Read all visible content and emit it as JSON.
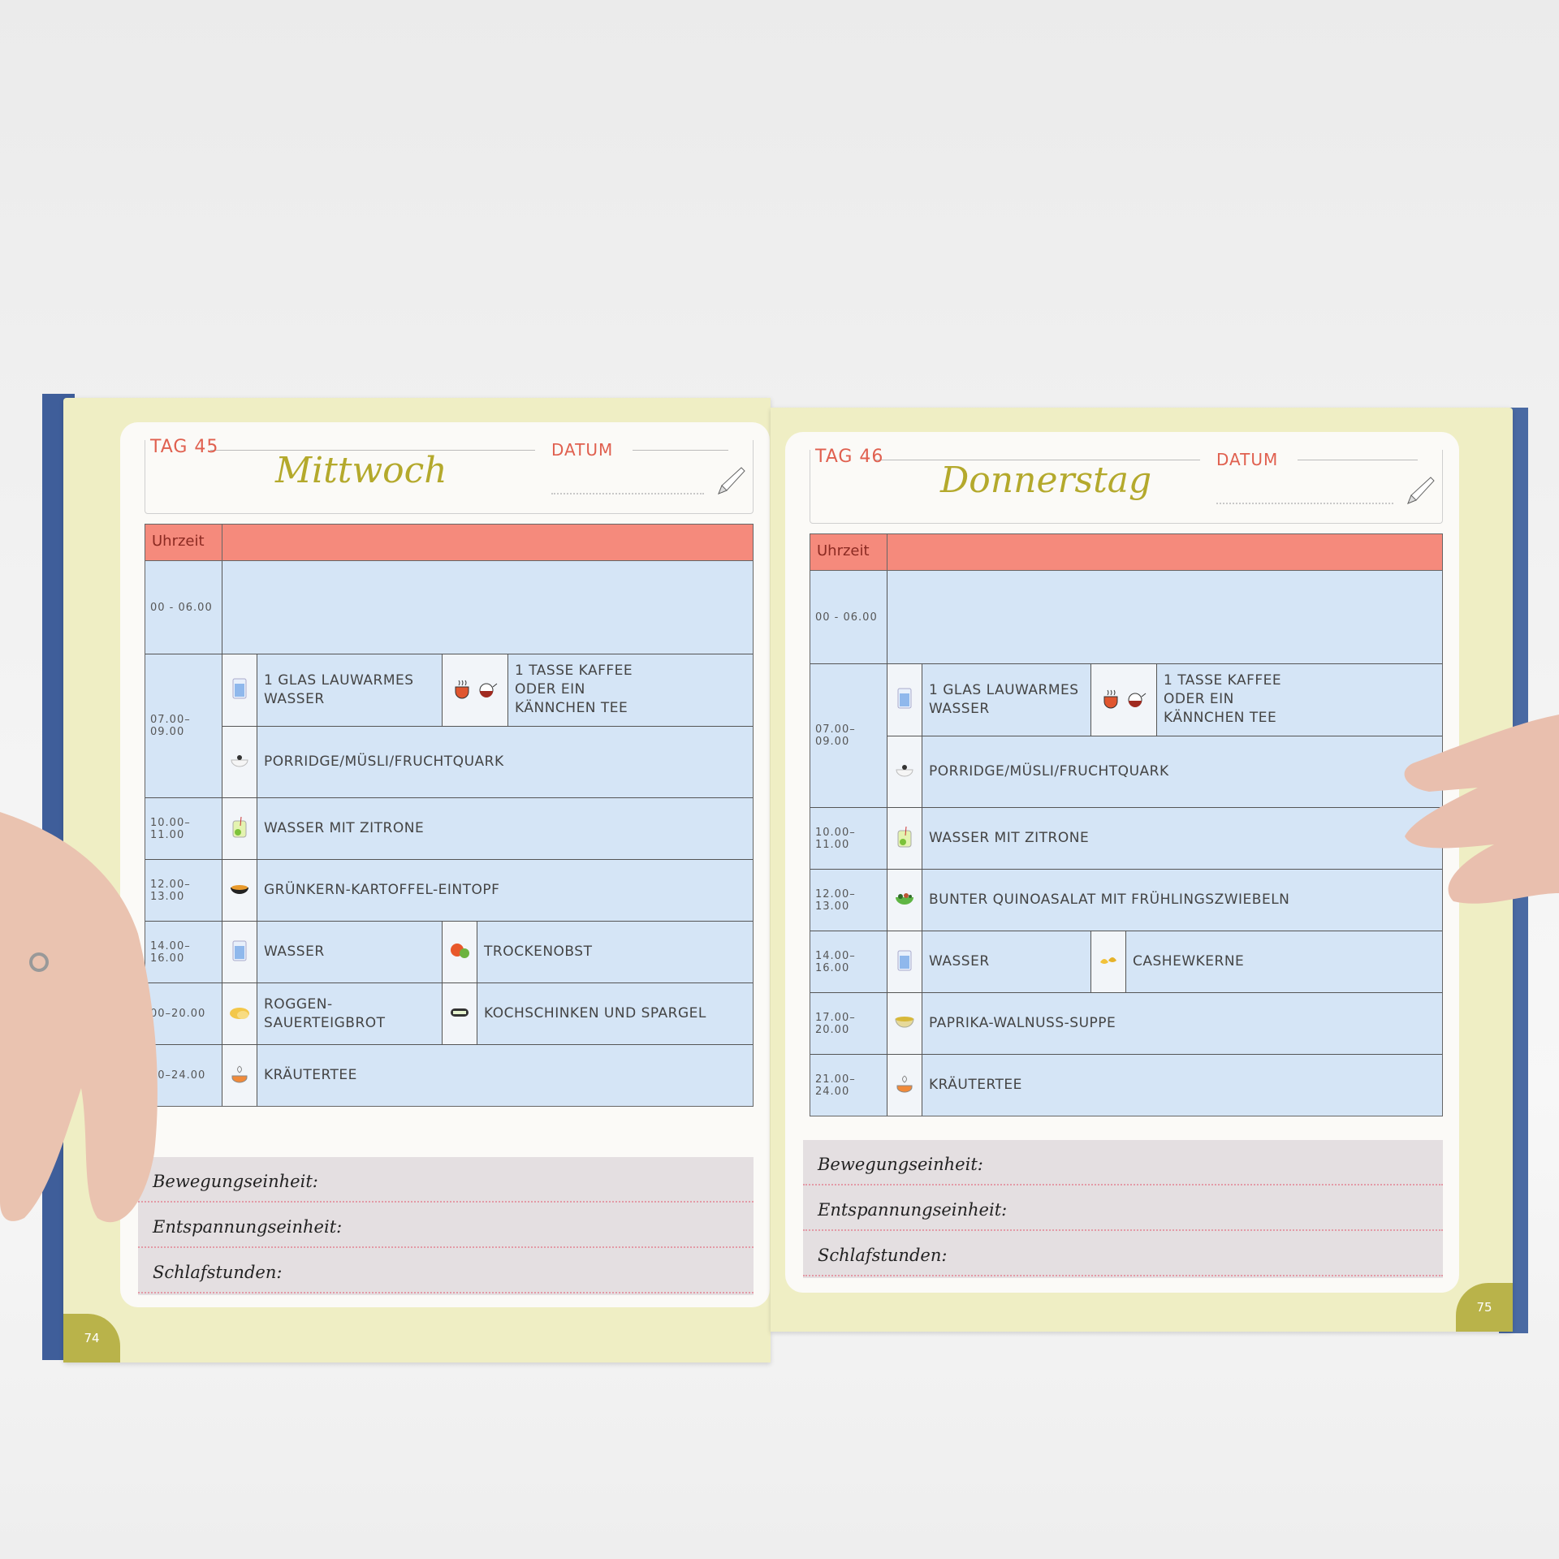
{
  "pages": [
    {
      "tag": "TAG 45",
      "day": "Mittwoch",
      "datum_label": "DATUM",
      "time_header": "Uhrzeit",
      "page_number": "74",
      "rows": [
        {
          "time": "00 - 06.00",
          "lines": [
            []
          ]
        },
        {
          "time": "07.00–09.00",
          "lines": [
            [
              {
                "icons": [
                  "water-glass"
                ],
                "text": "1 GLAS LAUWARMES WASSER"
              },
              {
                "icons": [
                  "tea-cup",
                  "teapot"
                ],
                "text": "1 TASSE KAFFEE ODER EIN KÄNNCHEN TEE"
              }
            ],
            [
              {
                "icons": [
                  "porridge-bowl"
                ],
                "text": "PORRIDGE/MÜSLI/FRUCHTQUARK"
              }
            ]
          ]
        },
        {
          "time": "10.00–11.00",
          "lines": [
            [
              {
                "icons": [
                  "lemon-water"
                ],
                "text": "WASSER MIT ZITRONE"
              }
            ]
          ]
        },
        {
          "time": "12.00–13.00",
          "lines": [
            [
              {
                "icons": [
                  "stew-bowl"
                ],
                "text": "GRÜNKERN-KARTOFFEL-EINTOPF"
              }
            ]
          ]
        },
        {
          "time": "14.00–16.00",
          "lines": [
            [
              {
                "icons": [
                  "water-glass"
                ],
                "text": "WASSER"
              },
              {
                "icons": [
                  "fruit"
                ],
                "text": "TROCKENOBST"
              }
            ]
          ]
        },
        {
          "time": "00–20.00",
          "lines": [
            [
              {
                "icons": [
                  "bread"
                ],
                "text": "ROGGEN-SAUERTEIGBROT"
              },
              {
                "icons": [
                  "ham-roll"
                ],
                "text": "KOCHSCHINKEN UND SPARGEL"
              }
            ]
          ]
        },
        {
          "time": "00–24.00",
          "lines": [
            [
              {
                "icons": [
                  "herbal-tea"
                ],
                "text": "KRÄUTERTEE"
              }
            ]
          ]
        }
      ],
      "footer": [
        "Bewegungseinheit:",
        "Entspannungseinheit:",
        "Schlafstunden:"
      ]
    },
    {
      "tag": "TAG 46",
      "day": "Donnerstag",
      "datum_label": "DATUM",
      "time_header": "Uhrzeit",
      "page_number": "75",
      "rows": [
        {
          "time": "00 - 06.00",
          "lines": [
            []
          ]
        },
        {
          "time": "07.00–09.00",
          "lines": [
            [
              {
                "icons": [
                  "water-glass"
                ],
                "text": "1 GLAS LAUWARMES WASSER"
              },
              {
                "icons": [
                  "tea-cup",
                  "teapot"
                ],
                "text": "1 TASSE KAFFEE ODER EIN KÄNNCHEN TEE"
              }
            ],
            [
              {
                "icons": [
                  "porridge-bowl"
                ],
                "text": "PORRIDGE/MÜSLI/FRUCHTQUARK"
              }
            ]
          ]
        },
        {
          "time": "10.00–11.00",
          "lines": [
            [
              {
                "icons": [
                  "lemon-water"
                ],
                "text": "WASSER MIT ZITRONE"
              }
            ]
          ]
        },
        {
          "time": "12.00–13.00",
          "lines": [
            [
              {
                "icons": [
                  "salad-bowl"
                ],
                "text": "BUNTER QUINOASALAT MIT FRÜHLINGSZWIEBELN"
              }
            ]
          ]
        },
        {
          "time": "14.00–16.00",
          "lines": [
            [
              {
                "icons": [
                  "water-glass"
                ],
                "text": "WASSER"
              },
              {
                "icons": [
                  "cashews"
                ],
                "text": "CASHEWKERNE"
              }
            ]
          ]
        },
        {
          "time": "17.00–20.00",
          "lines": [
            [
              {
                "icons": [
                  "soup-bowl"
                ],
                "text": "PAPRIKA-WALNUSS-SUPPE"
              }
            ]
          ]
        },
        {
          "time": "21.00–24.00",
          "lines": [
            [
              {
                "icons": [
                  "herbal-tea"
                ],
                "text": "KRÄUTERTEE"
              }
            ]
          ]
        }
      ],
      "footer": [
        "Bewegungseinheit:",
        "Entspannungseinheit:",
        "Schlafstunden:"
      ]
    }
  ],
  "colors": {
    "header_row": "#f58a7c",
    "row_fill": "#d5e5f6",
    "title": "#b4a92c",
    "tag": "#e0604f",
    "cover": "#3f5e9a"
  }
}
